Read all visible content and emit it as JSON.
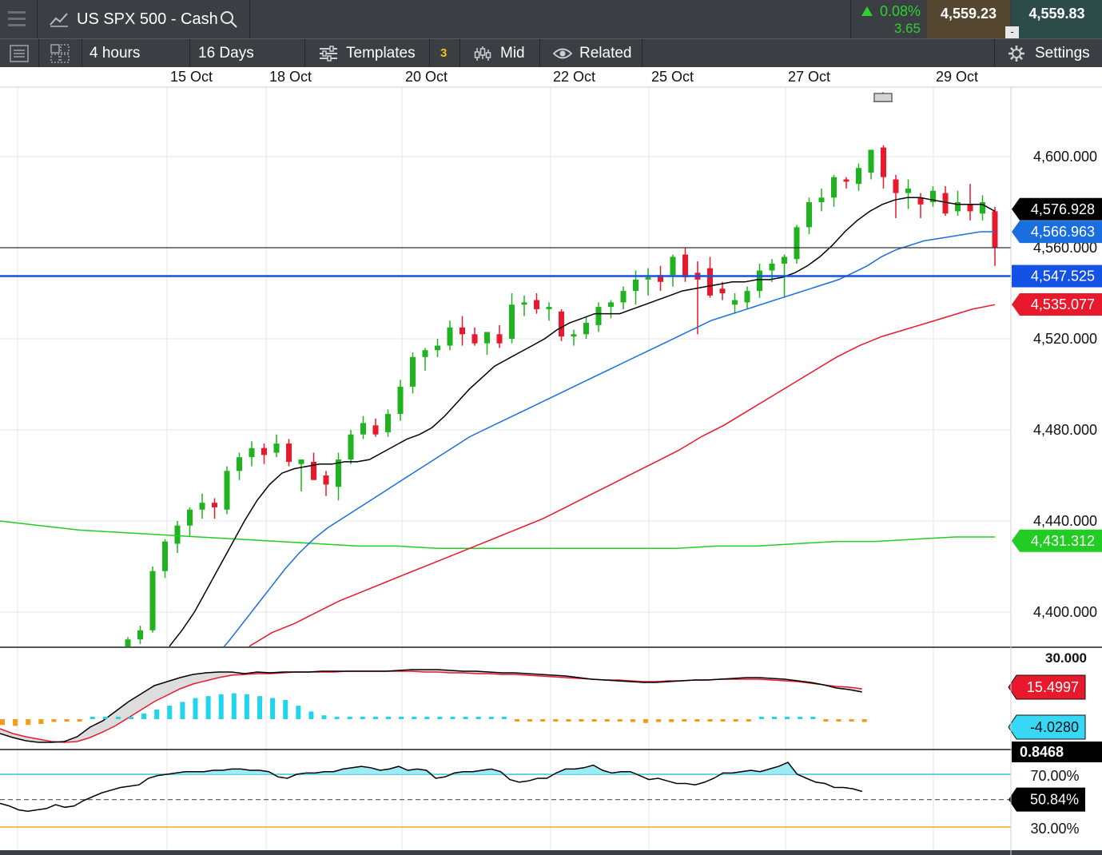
{
  "header": {
    "instrument": "US SPX 500 - Cash",
    "change_pct": "0.08%",
    "change_abs": "3.65",
    "sell_price": "4,559.23",
    "buy_price": "4,559.83",
    "spread_marker": "-"
  },
  "toolbar": {
    "interval": "4 hours",
    "range": "16 Days",
    "templates": "Templates",
    "templates_count": "3",
    "price_type": "Mid",
    "related": "Related",
    "settings": "Settings"
  },
  "colors": {
    "toolbar_bg": "#3b3e42",
    "up": "#1fb31f",
    "down": "#e8192c",
    "ma_fast": "#000000",
    "ma_mid": "#1a6fe0",
    "ma_slow": "#e8192c",
    "ma_long": "#22cc22",
    "hline": "#1452e6"
  },
  "chart_data": [
    {
      "type": "candlestick",
      "x_tick_labels": [
        "15 Oct",
        "18 Oct",
        "20 Oct",
        "22 Oct",
        "25 Oct",
        "27 Oct",
        "29 Oct"
      ],
      "y_tick_labels": [
        "4,600.000",
        "4,560.000",
        "4,520.000",
        "4,480.000",
        "4,440.000",
        "4,400.000"
      ],
      "y_ticks": [
        4600,
        4560,
        4520,
        4480,
        4440,
        4400
      ],
      "ylim": [
        4385,
        4640
      ],
      "price_line": 4560,
      "horizontal_line": 4547.525,
      "price_labels": {
        "ma_fast": "4,576.928",
        "ma_mid": "4,566.963",
        "horizontal_line": "4,547.525",
        "ma_slow": "4,535.077",
        "ma_long": "4,431.312"
      },
      "candles": [
        {
          "o": 4383,
          "h": 4389,
          "l": 4381,
          "c": 4388
        },
        {
          "o": 4388,
          "h": 4394,
          "l": 4386,
          "c": 4392
        },
        {
          "o": 4392,
          "h": 4420,
          "l": 4391,
          "c": 4418
        },
        {
          "o": 4418,
          "h": 4432,
          "l": 4415,
          "c": 4431
        },
        {
          "o": 4430,
          "h": 4440,
          "l": 4426,
          "c": 4438
        },
        {
          "o": 4438,
          "h": 4446,
          "l": 4433,
          "c": 4445
        },
        {
          "o": 4445,
          "h": 4452,
          "l": 4441,
          "c": 4448
        },
        {
          "o": 4448,
          "h": 4450,
          "l": 4441,
          "c": 4446
        },
        {
          "o": 4445,
          "h": 4464,
          "l": 4443,
          "c": 4462
        },
        {
          "o": 4462,
          "h": 4470,
          "l": 4458,
          "c": 4468
        },
        {
          "o": 4468,
          "h": 4475,
          "l": 4464,
          "c": 4472
        },
        {
          "o": 4472,
          "h": 4474,
          "l": 4465,
          "c": 4469
        },
        {
          "o": 4470,
          "h": 4478,
          "l": 4468,
          "c": 4474
        },
        {
          "o": 4474,
          "h": 4476,
          "l": 4464,
          "c": 4466
        },
        {
          "o": 4465,
          "h": 4467,
          "l": 4453,
          "c": 4467
        },
        {
          "o": 4466,
          "h": 4470,
          "l": 4458,
          "c": 4458
        },
        {
          "o": 4460,
          "h": 4462,
          "l": 4451,
          "c": 4456
        },
        {
          "o": 4455,
          "h": 4470,
          "l": 4449,
          "c": 4467
        },
        {
          "o": 4467,
          "h": 4480,
          "l": 4465,
          "c": 4478
        },
        {
          "o": 4478,
          "h": 4486,
          "l": 4476,
          "c": 4483
        },
        {
          "o": 4482,
          "h": 4485,
          "l": 4477,
          "c": 4478
        },
        {
          "o": 4479,
          "h": 4489,
          "l": 4477,
          "c": 4487
        },
        {
          "o": 4487,
          "h": 4502,
          "l": 4484,
          "c": 4499
        },
        {
          "o": 4499,
          "h": 4514,
          "l": 4496,
          "c": 4512
        },
        {
          "o": 4512,
          "h": 4516,
          "l": 4506,
          "c": 4515
        },
        {
          "o": 4515,
          "h": 4520,
          "l": 4512,
          "c": 4517
        },
        {
          "o": 4517,
          "h": 4528,
          "l": 4515,
          "c": 4525
        },
        {
          "o": 4525,
          "h": 4530,
          "l": 4517,
          "c": 4522
        },
        {
          "o": 4522,
          "h": 4525,
          "l": 4517,
          "c": 4518
        },
        {
          "o": 4518,
          "h": 4522,
          "l": 4513,
          "c": 4523
        },
        {
          "o": 4522,
          "h": 4526,
          "l": 4516,
          "c": 4518
        },
        {
          "o": 4520,
          "h": 4540,
          "l": 4518,
          "c": 4535
        },
        {
          "o": 4535,
          "h": 4539,
          "l": 4530,
          "c": 4536
        },
        {
          "o": 4537,
          "h": 4540,
          "l": 4531,
          "c": 4533
        },
        {
          "o": 4533,
          "h": 4536,
          "l": 4528,
          "c": 4534
        },
        {
          "o": 4532,
          "h": 4533,
          "l": 4519,
          "c": 4521
        },
        {
          "o": 4521,
          "h": 4524,
          "l": 4517,
          "c": 4522
        },
        {
          "o": 4522,
          "h": 4530,
          "l": 4520,
          "c": 4527
        },
        {
          "o": 4526,
          "h": 4536,
          "l": 4523,
          "c": 4534
        },
        {
          "o": 4534,
          "h": 4537,
          "l": 4529,
          "c": 4536
        },
        {
          "o": 4536,
          "h": 4543,
          "l": 4533,
          "c": 4541
        },
        {
          "o": 4541,
          "h": 4550,
          "l": 4535,
          "c": 4546
        },
        {
          "o": 4546,
          "h": 4551,
          "l": 4539,
          "c": 4547
        },
        {
          "o": 4548,
          "h": 4552,
          "l": 4541,
          "c": 4545
        },
        {
          "o": 4548,
          "h": 4557,
          "l": 4543,
          "c": 4556
        },
        {
          "o": 4557,
          "h": 4560,
          "l": 4545,
          "c": 4547
        },
        {
          "o": 4549,
          "h": 4554,
          "l": 4522,
          "c": 4546
        },
        {
          "o": 4551,
          "h": 4556,
          "l": 4538,
          "c": 4539
        },
        {
          "o": 4542,
          "h": 4545,
          "l": 4537,
          "c": 4540
        },
        {
          "o": 4535,
          "h": 4540,
          "l": 4531,
          "c": 4537
        },
        {
          "o": 4536,
          "h": 4543,
          "l": 4533,
          "c": 4541
        },
        {
          "o": 4541,
          "h": 4553,
          "l": 4538,
          "c": 4550
        },
        {
          "o": 4550,
          "h": 4555,
          "l": 4545,
          "c": 4553
        },
        {
          "o": 4553,
          "h": 4557,
          "l": 4538,
          "c": 4556
        },
        {
          "o": 4555,
          "h": 4570,
          "l": 4553,
          "c": 4569
        },
        {
          "o": 4569,
          "h": 4582,
          "l": 4566,
          "c": 4580
        },
        {
          "o": 4580,
          "h": 4586,
          "l": 4576,
          "c": 4582
        },
        {
          "o": 4582,
          "h": 4592,
          "l": 4578,
          "c": 4591
        },
        {
          "o": 4590,
          "h": 4591,
          "l": 4586,
          "c": 4589
        },
        {
          "o": 4588,
          "h": 4597,
          "l": 4585,
          "c": 4595
        },
        {
          "o": 4593,
          "h": 4602,
          "l": 4590,
          "c": 4603
        },
        {
          "o": 4604,
          "h": 4605,
          "l": 4586,
          "c": 4591
        },
        {
          "o": 4590,
          "h": 4592,
          "l": 4573,
          "c": 4584
        },
        {
          "o": 4584,
          "h": 4590,
          "l": 4577,
          "c": 4586
        },
        {
          "o": 4582,
          "h": 4584,
          "l": 4573,
          "c": 4579
        },
        {
          "o": 4580,
          "h": 4587,
          "l": 4578,
          "c": 4585
        },
        {
          "o": 4584,
          "h": 4587,
          "l": 4574,
          "c": 4575
        },
        {
          "o": 4576,
          "h": 4585,
          "l": 4574,
          "c": 4580
        },
        {
          "o": 4579,
          "h": 4588,
          "l": 4572,
          "c": 4576
        },
        {
          "o": 4575,
          "h": 4583,
          "l": 4572,
          "c": 4580
        },
        {
          "o": 4576,
          "h": 4578,
          "l": 4552,
          "c": 4560
        }
      ],
      "ma_fast": [
        4385,
        4392,
        4400,
        4410,
        4420,
        4430,
        4440,
        4449,
        4456,
        4461,
        4463,
        4464,
        4465,
        4465,
        4466,
        4466,
        4467,
        4470,
        4473,
        4476,
        4478,
        4481,
        4486,
        4492,
        4498,
        4503,
        4508,
        4511,
        4514,
        4517,
        4520,
        4524,
        4527,
        4529,
        4531,
        4531,
        4531,
        4533,
        4535,
        4537,
        4539,
        4541,
        4542,
        4543,
        4544,
        4545,
        4545,
        4546,
        4546,
        4547,
        4549,
        4552,
        4556,
        4561,
        4567,
        4572,
        4576,
        4579,
        4581,
        4582,
        4582,
        4581,
        4580,
        4579,
        4579,
        4579,
        4576
      ],
      "ma_mid": [
        4380,
        4387,
        4395,
        4403,
        4411,
        4419,
        4426,
        4432,
        4437,
        4441,
        4445,
        4449,
        4453,
        4457,
        4461,
        4465,
        4469,
        4473,
        4477,
        4480,
        4483,
        4486,
        4489,
        4492,
        4495,
        4498,
        4501,
        4504,
        4507,
        4510,
        4513,
        4516,
        4519,
        4522,
        4525,
        4528,
        4530,
        4532,
        4534,
        4536,
        4538,
        4540,
        4542,
        4544,
        4546,
        4549,
        4552,
        4556,
        4559,
        4561,
        4563,
        4564,
        4565,
        4566,
        4567,
        4567
      ],
      "ma_slow": [
        4385,
        4391,
        4395,
        4400,
        4405,
        4409,
        4413,
        4417,
        4421,
        4425,
        4429,
        4433,
        4437,
        4441,
        4446,
        4451,
        4456,
        4461,
        4466,
        4471,
        4477,
        4482,
        4488,
        4494,
        4500,
        4506,
        4512,
        4517,
        4521,
        4524,
        4527,
        4530,
        4533,
        4535
      ],
      "ma_long": [
        4440,
        4438,
        4436,
        4435,
        4434,
        4433,
        4432,
        4431,
        4430,
        4429,
        4429,
        4428,
        4428,
        4428,
        4428,
        4428,
        4428,
        4428,
        4429,
        4429,
        4430,
        4431,
        4431,
        4432,
        4433,
        4433
      ],
      "oscillator": {
        "tick_labels": [
          "30.000"
        ],
        "labels": {
          "signal": "15.4997",
          "histogram": "-4.0280"
        }
      },
      "stochastic": {
        "tick_labels": [
          "70.00%",
          "30.00%"
        ],
        "labels": {
          "k": "0.8468",
          "d": "50.84%"
        }
      }
    }
  ]
}
